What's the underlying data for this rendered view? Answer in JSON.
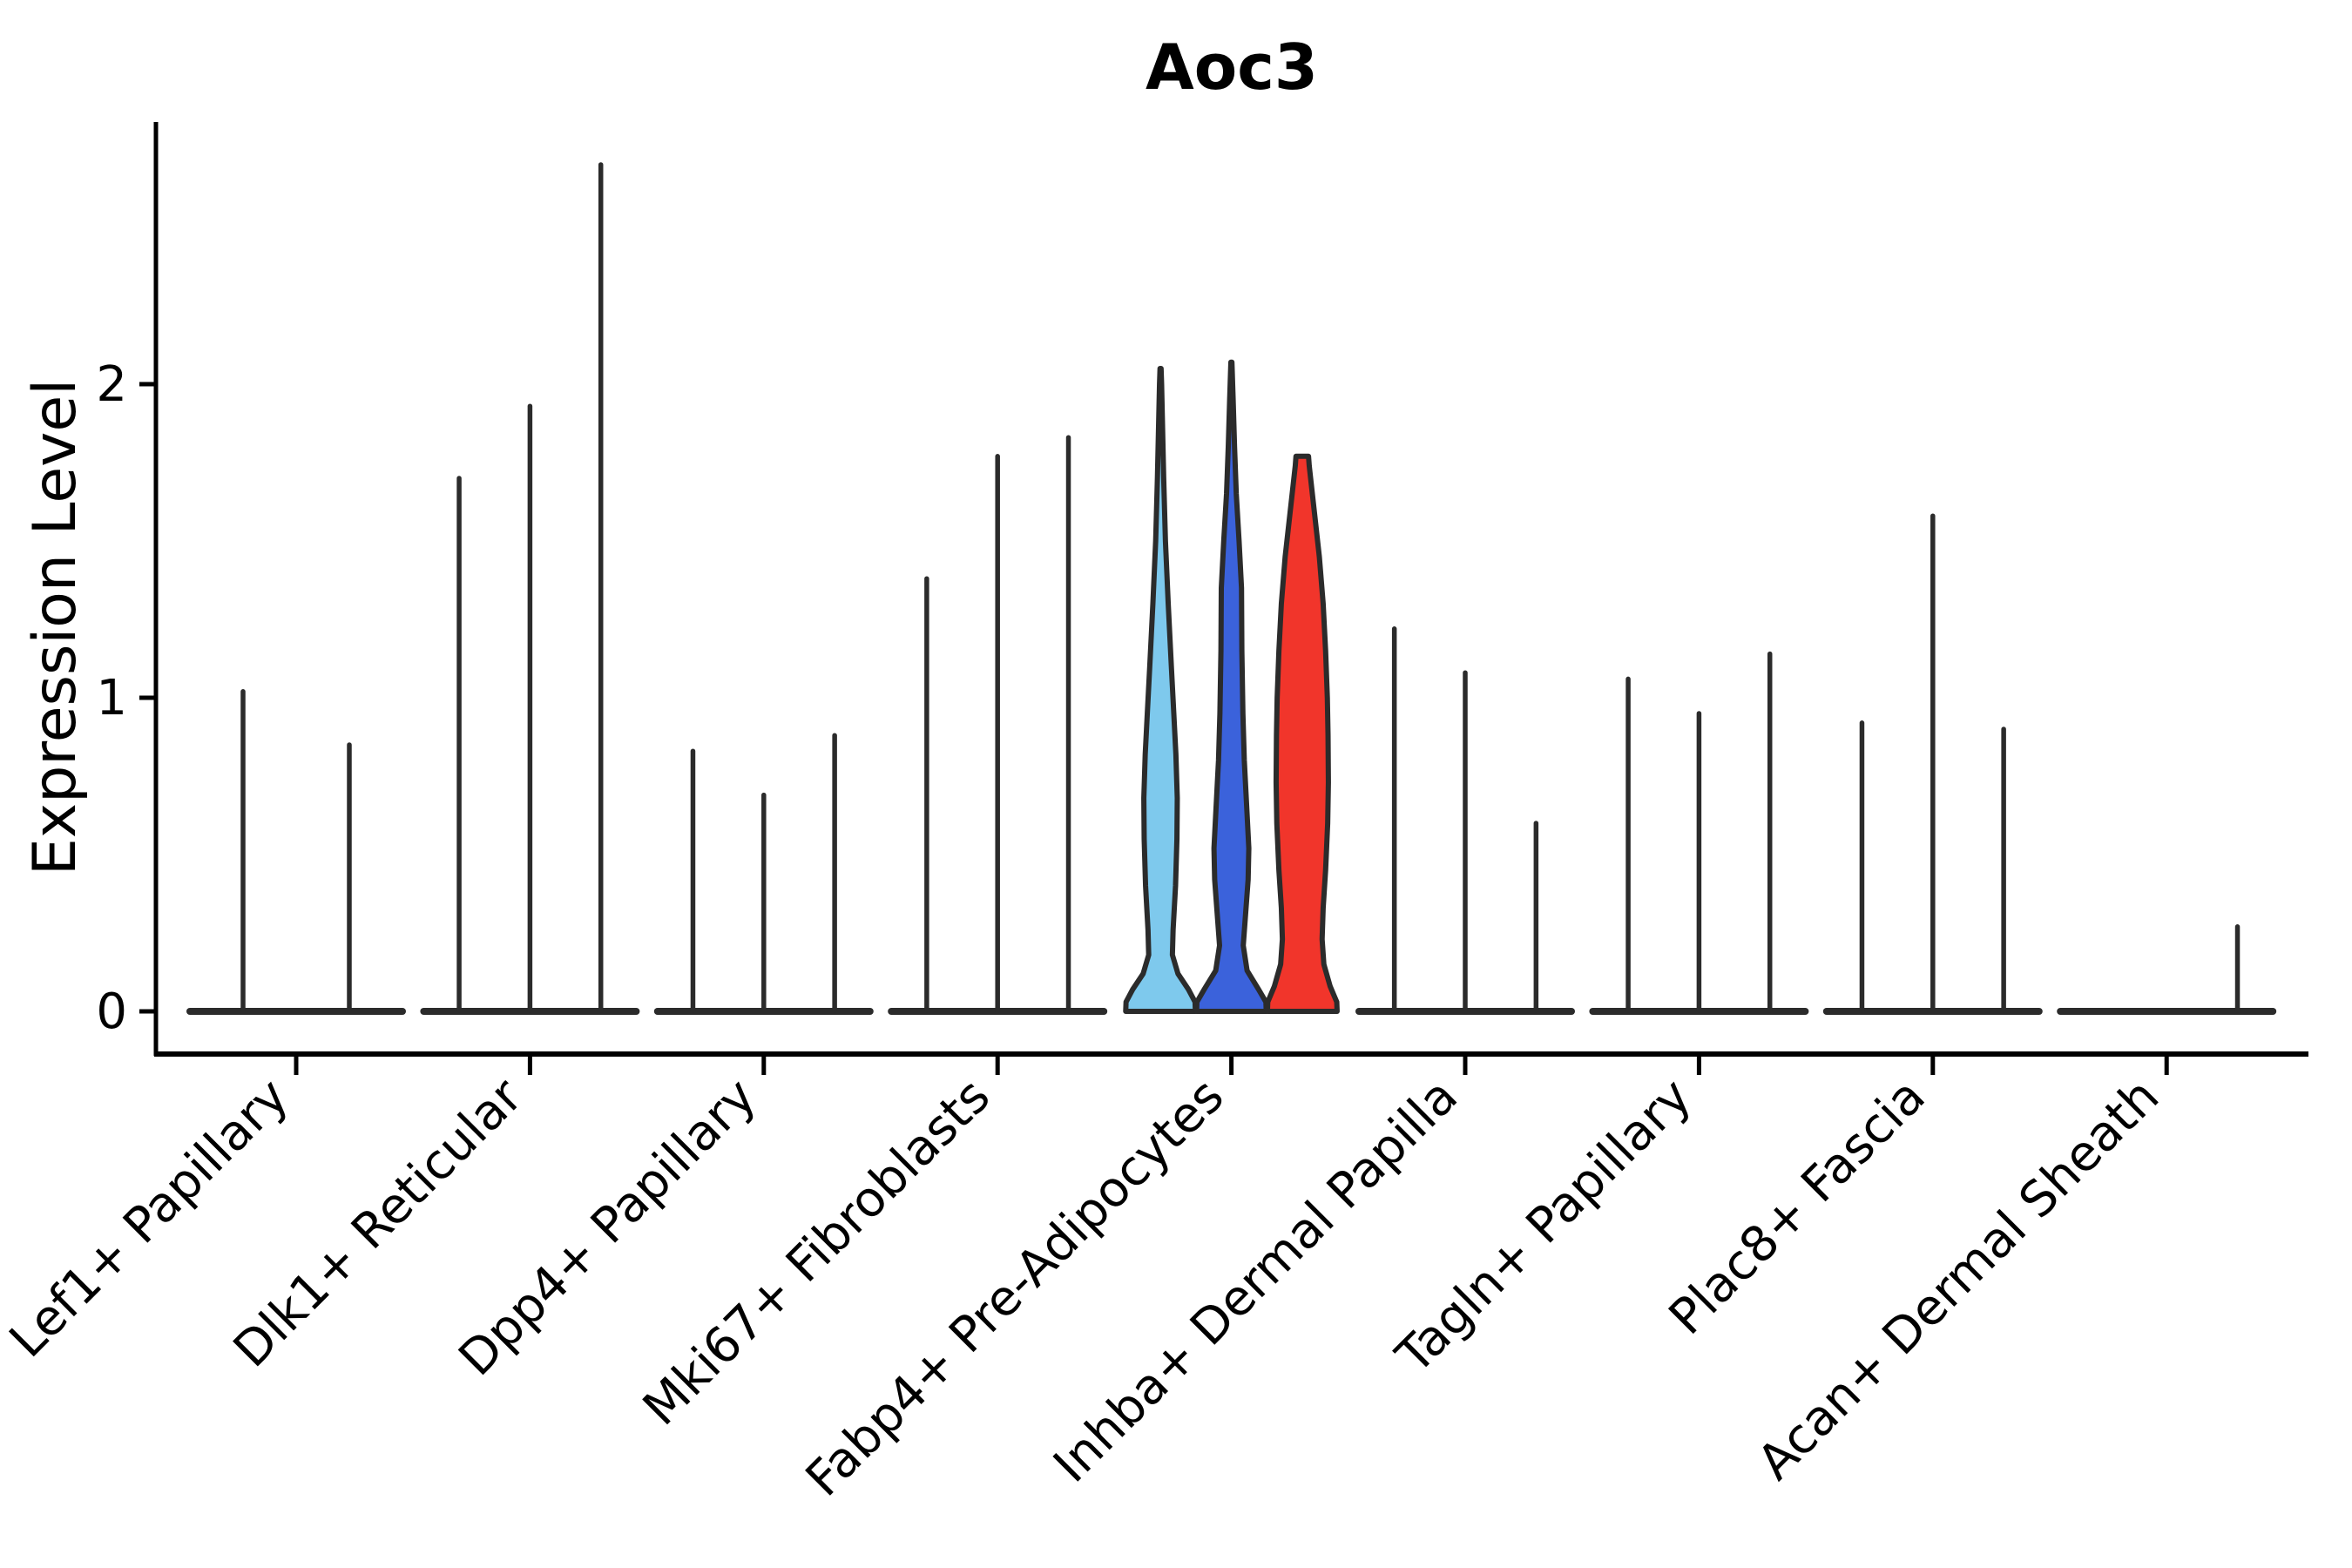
{
  "figure": {
    "background": "#ffffff"
  },
  "chart_data": {
    "type": "violin",
    "title": "Aoc3",
    "ylabel": "Expression Level",
    "xlabel": "",
    "ylim": [
      0,
      2.84
    ],
    "yticks": [
      0,
      1,
      2
    ],
    "ytick_labels": [
      "0",
      "1",
      "2"
    ],
    "grid": false,
    "legend": "none",
    "line_color": "#2b2b2b",
    "axis_color": "#000000",
    "highlight_palette": {
      "light_blue": "#7EC9ED",
      "royal_blue": "#3B62DB",
      "red": "#F1352B"
    },
    "groups": [
      {
        "label": "Lef1+ Papillary",
        "violins": [
          {
            "max": 1.02,
            "style": "spike",
            "fill": null
          },
          {
            "max": 0.85,
            "style": "spike",
            "fill": null
          }
        ]
      },
      {
        "label": "Dlk1+ Reticular",
        "violins": [
          {
            "max": 1.7,
            "style": "spike",
            "fill": null
          },
          {
            "max": 1.93,
            "style": "spike",
            "fill": null
          },
          {
            "max": 2.7,
            "style": "spike",
            "fill": null
          }
        ]
      },
      {
        "label": "Dpp4+ Papillary",
        "violins": [
          {
            "max": 0.83,
            "style": "spike",
            "fill": null
          },
          {
            "max": 0.69,
            "style": "spike",
            "fill": null
          },
          {
            "max": 0.88,
            "style": "spike",
            "fill": null
          }
        ]
      },
      {
        "label": "Mki67+ Fibroblasts",
        "violins": [
          {
            "max": 1.38,
            "style": "spike",
            "fill": null
          },
          {
            "max": 1.77,
            "style": "spike",
            "fill": null
          },
          {
            "max": 1.83,
            "style": "spike",
            "fill": null
          }
        ]
      },
      {
        "label": "Fabp4+ Pre-Adipocytes",
        "violins": [
          {
            "max": 2.05,
            "style": "density",
            "fill": "#7EC9ED",
            "profile": [
              [
                0.0,
                1.0
              ],
              [
                0.03,
                0.99
              ],
              [
                0.07,
                0.8
              ],
              [
                0.12,
                0.5
              ],
              [
                0.18,
                0.34
              ],
              [
                0.26,
                0.36
              ],
              [
                0.4,
                0.43
              ],
              [
                0.55,
                0.47
              ],
              [
                0.68,
                0.48
              ],
              [
                0.82,
                0.44
              ],
              [
                0.95,
                0.38
              ],
              [
                1.1,
                0.31
              ],
              [
                1.3,
                0.22
              ],
              [
                1.5,
                0.14
              ],
              [
                1.7,
                0.09
              ],
              [
                1.9,
                0.05
              ],
              [
                2.0,
                0.03
              ],
              [
                2.05,
                0.015
              ]
            ]
          },
          {
            "max": 2.07,
            "style": "density",
            "fill": "#3B62DB",
            "profile": [
              [
                0.0,
                1.0
              ],
              [
                0.03,
                0.99
              ],
              [
                0.07,
                0.78
              ],
              [
                0.13,
                0.45
              ],
              [
                0.21,
                0.34
              ],
              [
                0.3,
                0.4
              ],
              [
                0.42,
                0.48
              ],
              [
                0.52,
                0.5
              ],
              [
                0.65,
                0.44
              ],
              [
                0.8,
                0.37
              ],
              [
                0.95,
                0.33
              ],
              [
                1.15,
                0.3
              ],
              [
                1.35,
                0.29
              ],
              [
                1.5,
                0.22
              ],
              [
                1.65,
                0.14
              ],
              [
                1.8,
                0.09
              ],
              [
                1.95,
                0.05
              ],
              [
                2.07,
                0.015
              ]
            ]
          },
          {
            "max": 1.77,
            "style": "density",
            "fill": "#F1352B",
            "profile": [
              [
                0.0,
                1.0
              ],
              [
                0.03,
                0.99
              ],
              [
                0.08,
                0.8
              ],
              [
                0.15,
                0.62
              ],
              [
                0.23,
                0.57
              ],
              [
                0.33,
                0.6
              ],
              [
                0.45,
                0.67
              ],
              [
                0.6,
                0.73
              ],
              [
                0.73,
                0.75
              ],
              [
                0.88,
                0.74
              ],
              [
                1.0,
                0.72
              ],
              [
                1.15,
                0.67
              ],
              [
                1.3,
                0.6
              ],
              [
                1.45,
                0.49
              ],
              [
                1.58,
                0.36
              ],
              [
                1.68,
                0.26
              ],
              [
                1.74,
                0.2
              ],
              [
                1.77,
                0.18
              ]
            ]
          }
        ]
      },
      {
        "label": "Inhba+ Dermal Papilla",
        "violins": [
          {
            "max": 1.22,
            "style": "spike",
            "fill": null
          },
          {
            "max": 1.08,
            "style": "spike",
            "fill": null
          },
          {
            "max": 0.6,
            "style": "spike",
            "fill": null
          }
        ]
      },
      {
        "label": "Tagln+ Papillary",
        "violins": [
          {
            "max": 1.06,
            "style": "spike",
            "fill": null
          },
          {
            "max": 0.95,
            "style": "spike",
            "fill": null
          },
          {
            "max": 1.14,
            "style": "spike",
            "fill": null
          }
        ]
      },
      {
        "label": "Plac8+ Fascia",
        "violins": [
          {
            "max": 0.92,
            "style": "spike",
            "fill": null
          },
          {
            "max": 1.58,
            "style": "spike",
            "fill": null
          },
          {
            "max": 0.9,
            "style": "spike",
            "fill": null
          }
        ]
      },
      {
        "label": "Acan+ Dermal Sheath",
        "violins": [
          {
            "max": 0.0,
            "style": "flat",
            "fill": null
          },
          {
            "max": 0.0,
            "style": "flat",
            "fill": null
          },
          {
            "max": 0.27,
            "style": "spike",
            "fill": null
          }
        ]
      }
    ]
  }
}
